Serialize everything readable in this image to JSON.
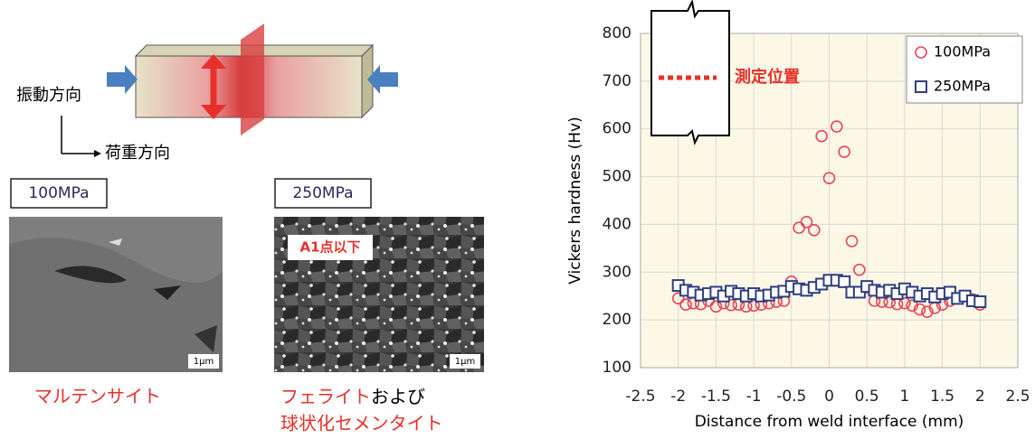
{
  "diagram": {
    "vibration_direction": "振動方向",
    "load_direction": "荷重方向"
  },
  "micrographs": [
    {
      "label": "100MPa",
      "scale": "1μm",
      "caption": "マルテンサイト"
    },
    {
      "label": "250MPa",
      "note": "A1点以下",
      "scale": "1μm",
      "caption_line1": [
        "フェライト",
        "および"
      ],
      "caption_line2": "球状化セメンタイト"
    }
  ],
  "chart_data": {
    "type": "scatter",
    "xlabel": "Distance from weld interface (mm)",
    "ylabel": "Vickers hardness (Hv)",
    "xlim": [
      -2.5,
      2.5
    ],
    "ylim": [
      100,
      800
    ],
    "xticks": [
      -2.5,
      -2,
      -1.5,
      -1,
      -0.5,
      0,
      0.5,
      1,
      1.5,
      2,
      2.5
    ],
    "yticks": [
      100,
      200,
      300,
      400,
      500,
      600,
      700,
      800
    ],
    "grid": true,
    "legend": "upper right",
    "annotation": "測定位置",
    "x": [
      -2.0,
      -1.9,
      -1.8,
      -1.7,
      -1.6,
      -1.5,
      -1.4,
      -1.3,
      -1.2,
      -1.1,
      -1.0,
      -0.9,
      -0.8,
      -0.7,
      -0.6,
      -0.5,
      -0.4,
      -0.3,
      -0.2,
      -0.1,
      0,
      0.1,
      0.2,
      0.3,
      0.4,
      0.5,
      0.6,
      0.7,
      0.8,
      0.9,
      1.0,
      1.1,
      1.2,
      1.3,
      1.4,
      1.5,
      1.6,
      1.7,
      1.8,
      1.9,
      2.0
    ],
    "series": [
      {
        "name": "100MPa",
        "color": "#e8455a",
        "marker": "circle",
        "values": [
          245,
          232,
          235,
          233,
          240,
          228,
          235,
          231,
          232,
          228,
          230,
          232,
          235,
          238,
          240,
          280,
          393,
          405,
          388,
          585,
          497,
          605,
          552,
          365,
          305,
          268,
          240,
          238,
          237,
          233,
          235,
          230,
          222,
          217,
          225,
          232,
          240,
          245,
          250,
          243,
          232
        ]
      },
      {
        "name": "250MPa",
        "color": "#2f3f7f",
        "marker": "square",
        "values": [
          272,
          262,
          258,
          252,
          255,
          258,
          250,
          260,
          255,
          250,
          255,
          250,
          252,
          258,
          260,
          270,
          265,
          262,
          268,
          275,
          283,
          283,
          280,
          258,
          258,
          270,
          262,
          258,
          262,
          255,
          265,
          258,
          250,
          255,
          248,
          255,
          258,
          245,
          250,
          240,
          238
        ]
      }
    ]
  }
}
